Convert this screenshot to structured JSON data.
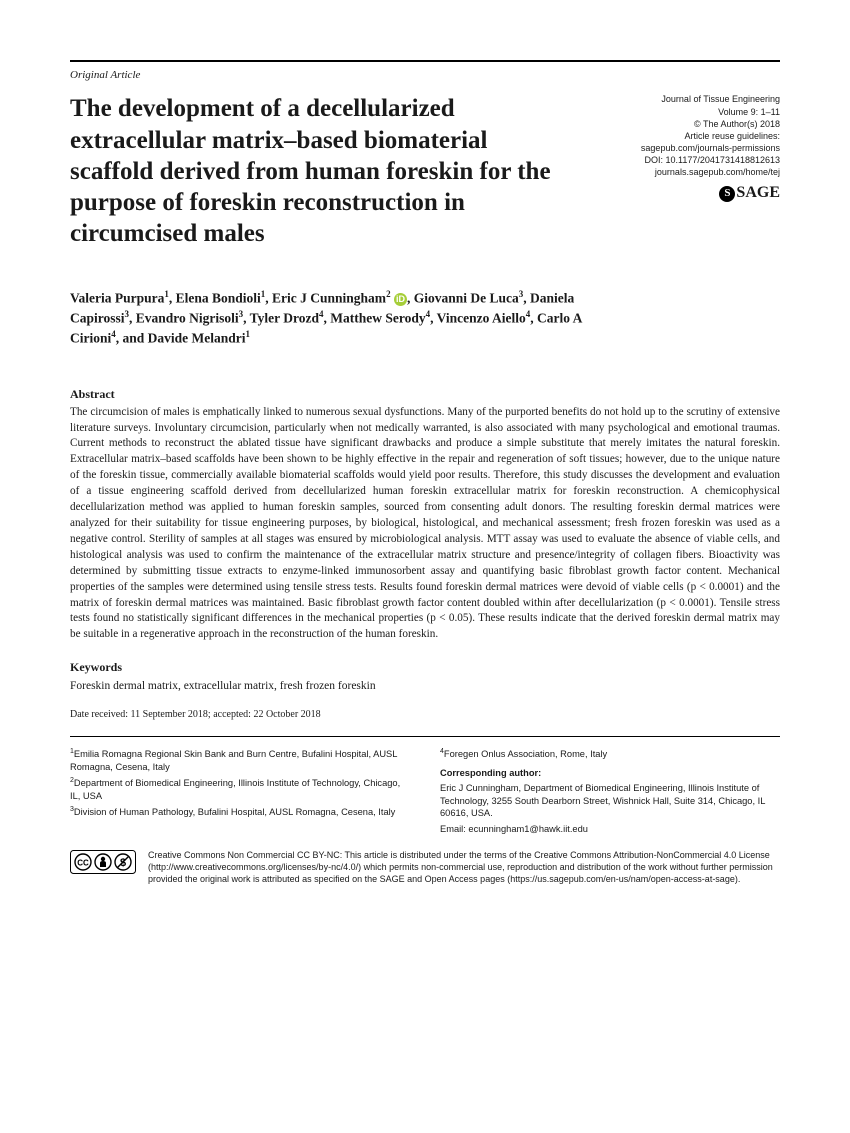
{
  "article_type": "Original Article",
  "title": "The development of a decellularized extracellular matrix–based biomaterial scaffold derived from human foreskin for the purpose of foreskin reconstruction in circumcised males",
  "meta": {
    "journal": "Journal of Tissue Engineering",
    "volume": "Volume 9: 1–11",
    "copyright": "© The Author(s) 2018",
    "reuse": "Article reuse guidelines:",
    "reuse_url": "sagepub.com/journals-permissions",
    "doi": "DOI: 10.1177/2041731418812613",
    "home": "journals.sagepub.com/home/tej"
  },
  "authors_html": "Valeria Purpura<sup>1</sup>, Elena Bondioli<sup>1</sup>, Eric J Cunningham<sup>2</sup> <span class=\"orcid\">iD</span>, Giovanni De Luca<sup>3</sup>, Daniela Capirossi<sup>3</sup>, Evandro Nigrisoli<sup>3</sup>, Tyler Drozd<sup>4</sup>, Matthew Serody<sup>4</sup>, Vincenzo Aiello<sup>4</sup>, Carlo A Cirioni<sup>4</sup>, and Davide Melandri<sup>1</sup>",
  "abstract_h": "Abstract",
  "abstract": "The circumcision of males is emphatically linked to numerous sexual dysfunctions. Many of the purported benefits do not hold up to the scrutiny of extensive literature surveys. Involuntary circumcision, particularly when not medically warranted, is also associated with many psychological and emotional traumas. Current methods to reconstruct the ablated tissue have significant drawbacks and produce a simple substitute that merely imitates the natural foreskin. Extracellular matrix–based scaffolds have been shown to be highly effective in the repair and regeneration of soft tissues; however, due to the unique nature of the foreskin tissue, commercially available biomaterial scaffolds would yield poor results. Therefore, this study discusses the development and evaluation of a tissue engineering scaffold derived from decellularized human foreskin extracellular matrix for foreskin reconstruction. A chemicophysical decellularization method was applied to human foreskin samples, sourced from consenting adult donors. The resulting foreskin dermal matrices were analyzed for their suitability for tissue engineering purposes, by biological, histological, and mechanical assessment; fresh frozen foreskin was used as a negative control. Sterility of samples at all stages was ensured by microbiological analysis. MTT assay was used to evaluate the absence of viable cells, and histological analysis was used to confirm the maintenance of the extracellular matrix structure and presence/integrity of collagen fibers. Bioactivity was determined by submitting tissue extracts to enzyme-linked immunosorbent assay and quantifying basic fibroblast growth factor content. Mechanical properties of the samples were determined using tensile stress tests. Results found foreskin dermal matrices were devoid of viable cells (p < 0.0001) and the matrix of foreskin dermal matrices was maintained. Basic fibroblast growth factor content doubled within after decellularization (p < 0.0001). Tensile stress tests found no statistically significant differences in the mechanical properties (p < 0.05). These results indicate that the derived foreskin dermal matrix may be suitable in a regenerative approach in the reconstruction of the human foreskin.",
  "keywords_h": "Keywords",
  "keywords": "Foreskin dermal matrix, extracellular matrix, fresh frozen foreskin",
  "dates": "Date received: 11 September 2018; accepted: 22 October 2018",
  "affils_left": [
    "<sup>1</sup>Emilia Romagna Regional Skin Bank and Burn Centre, Bufalini Hospital, AUSL Romagna, Cesena, Italy",
    "<sup>2</sup>Department of Biomedical Engineering, Illinois Institute of Technology, Chicago, IL, USA",
    "<sup>3</sup>Division of Human Pathology, Bufalini Hospital, AUSL Romagna, Cesena, Italy"
  ],
  "affil_right_top": "<sup>4</sup>Foregen Onlus Association, Rome, Italy",
  "corr_h": "Corresponding author:",
  "corr": "Eric J Cunningham, Department of Biomedical Engineering, Illinois Institute of Technology, 3255 South Dearborn Street, Wishnick Hall, Suite 314, Chicago, IL 60616, USA.",
  "corr_email": "Email: ecunningham1@hawk.iit.edu",
  "license": "Creative Commons Non Commercial CC BY-NC: This article is distributed under the terms of the Creative Commons Attribution-NonCommercial 4.0 License (http://www.creativecommons.org/licenses/by-nc/4.0/) which permits non-commercial use, reproduction and distribution of the work without further permission provided the original work is attributed as specified on the SAGE and Open Access pages (https://us.sagepub.com/en-us/nam/open-access-at-sage).",
  "colors": {
    "text": "#1a1a1a",
    "rule": "#000000",
    "orcid": "#a6ce39",
    "cc_border": "#000000",
    "cc_bg": "#ffffff"
  }
}
